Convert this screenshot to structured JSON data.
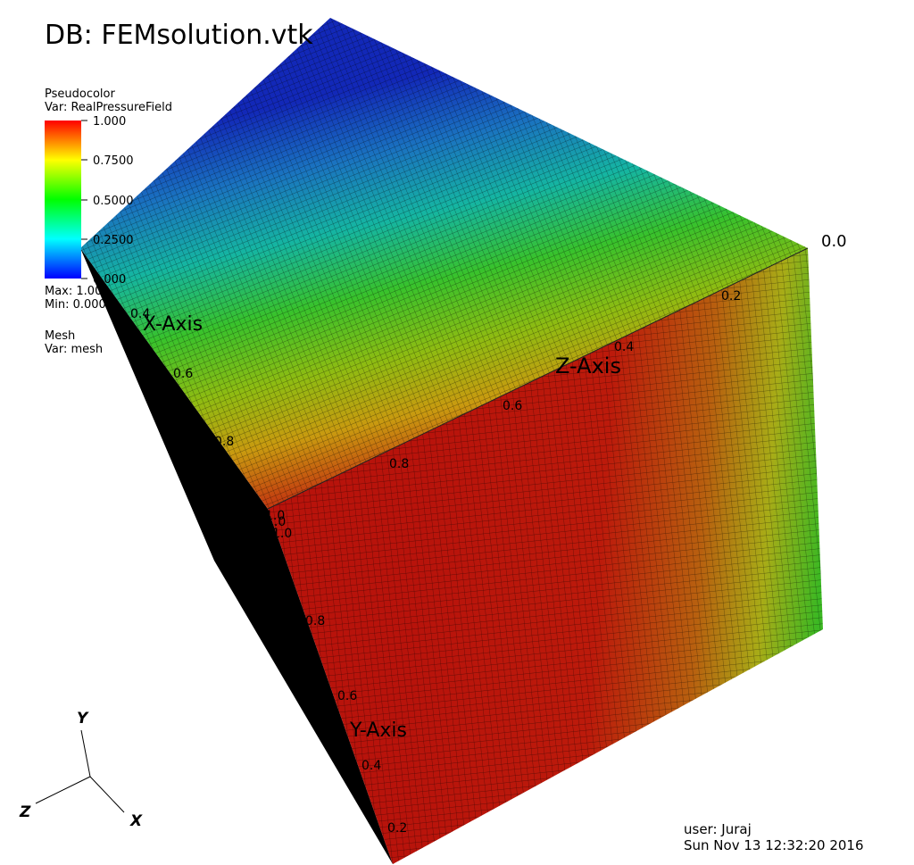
{
  "title": "DB: FEMsolution.vtk",
  "legend": {
    "plot": "Pseudocolor",
    "var": "Var: RealPressureField",
    "ticks": [
      "1.000",
      "0.7500",
      "0.5000",
      "0.2500",
      "0.000"
    ],
    "max": "Max:  1.000",
    "min": "Min:  0.000",
    "colors": [
      "#ff0000",
      "#ffff00",
      "#00ff00",
      "#00ffff",
      "#0000ff"
    ]
  },
  "mesh": {
    "plot": "Mesh",
    "var": "Var: mesh"
  },
  "axes": {
    "x_title": "X-Axis",
    "y_title": "Y-Axis",
    "z_title": "Z-Axis",
    "x_ticks": [
      "0.4",
      "0.6",
      "0.8",
      "1.0"
    ],
    "y_ticks": [
      "1.0",
      "0.8",
      "0.6",
      "0.4",
      "0.2"
    ],
    "z_ticks": [
      "0.0",
      "0.2",
      "0.4",
      "0.6",
      "0.8",
      "1.0"
    ]
  },
  "triad": {
    "x": "X",
    "y": "Y",
    "z": "Z"
  },
  "footer": {
    "user": "user: Juraj",
    "date": "Sun Nov 13 12:32:20 2016"
  }
}
